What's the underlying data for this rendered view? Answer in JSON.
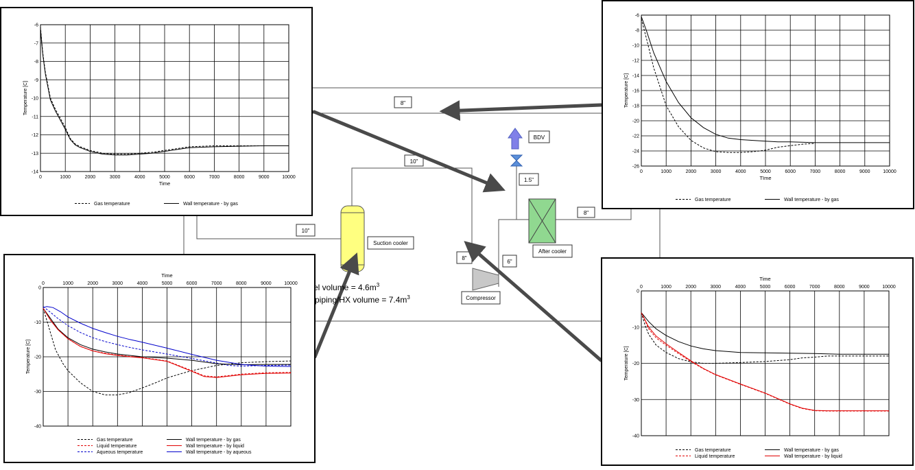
{
  "diagram": {
    "pipe_labels": {
      "top_8": "8\"",
      "top_10": "10\"",
      "left_10": "10\"",
      "bdv_15": "1.5\"",
      "right_8": "8\"",
      "mid_8": "8\"",
      "comp_6": "6\""
    },
    "equipment": {
      "bdv": "BDV",
      "suction_cooler": "Suction cooler",
      "after_cooler": "After cooler",
      "compressor": "Compressor"
    },
    "notes": {
      "vessel_prefix": "el volume = 4.6m",
      "vessel_exp": "3",
      "piping_prefix": "l piping/HX volume = 7.4m",
      "piping_exp": "3"
    },
    "colors": {
      "arrow": "#4a4a4a",
      "bdv_arrow": "#8080e8",
      "suction_cooler": "#ffff80",
      "after_cooler": "#90d890",
      "compressor": "#c8c8c8",
      "valve": "#5b8fd9"
    }
  },
  "chart_data": [
    {
      "type": "line",
      "id": "top-left",
      "xlabel": "Time",
      "ylabel": "Temperature [C]",
      "xlim": [
        0,
        10000
      ],
      "ylim": [
        -14,
        -6
      ],
      "x_axis_position": "bottom",
      "xticks": [
        0,
        1000,
        2000,
        3000,
        4000,
        5000,
        6000,
        7000,
        8000,
        9000,
        10000
      ],
      "yticks": [
        -14,
        -13,
        -12,
        -11,
        -10,
        -9,
        -8,
        -7,
        -6
      ],
      "grid": true,
      "legend_columns": 2,
      "series": [
        {
          "name": "Gas temperature",
          "color": "#000000",
          "dash": true,
          "x": [
            0,
            50,
            100,
            200,
            400,
            600,
            800,
            1000,
            1200,
            1400,
            1600,
            2000,
            2500,
            3000,
            3500,
            4000,
            4500,
            5000,
            5500,
            6000,
            7000,
            8000,
            9000,
            10000
          ],
          "y": [
            -6.1,
            -6.9,
            -7.6,
            -8.6,
            -10.0,
            -10.6,
            -11.1,
            -11.6,
            -12.2,
            -12.5,
            -12.65,
            -12.85,
            -13.0,
            -13.05,
            -13.05,
            -13.0,
            -12.95,
            -12.85,
            -12.75,
            -12.65,
            -12.6,
            -12.6,
            -12.6,
            -12.6
          ]
        },
        {
          "name": "Wall temperature - by gas",
          "color": "#000000",
          "dash": false,
          "x": [
            0,
            50,
            100,
            200,
            400,
            600,
            800,
            1000,
            1200,
            1400,
            1600,
            2000,
            2500,
            3000,
            3500,
            4000,
            4500,
            5000,
            5500,
            6000,
            7000,
            8000,
            9000,
            10000
          ],
          "y": [
            -6.2,
            -7.0,
            -7.7,
            -8.7,
            -10.1,
            -10.7,
            -11.2,
            -11.7,
            -12.25,
            -12.55,
            -12.7,
            -12.9,
            -13.05,
            -13.1,
            -13.1,
            -13.05,
            -13.0,
            -12.9,
            -12.8,
            -12.7,
            -12.65,
            -12.62,
            -12.6,
            -12.6
          ]
        }
      ]
    },
    {
      "type": "line",
      "id": "top-right",
      "xlabel": "TIme",
      "ylabel": "Temperature [C]",
      "xlim": [
        0,
        10000
      ],
      "ylim": [
        -26,
        -6
      ],
      "x_axis_position": "bottom",
      "xticks": [
        0,
        1000,
        2000,
        3000,
        4000,
        5000,
        6000,
        7000,
        8000,
        9000,
        10000
      ],
      "yticks": [
        -26,
        -24,
        -22,
        -20,
        -18,
        -16,
        -14,
        -12,
        -10,
        -8,
        -6
      ],
      "grid": true,
      "legend_columns": 2,
      "series": [
        {
          "name": "Gas temperature",
          "color": "#000000",
          "dash": true,
          "x": [
            0,
            200,
            500,
            1000,
            1500,
            2000,
            2500,
            3000,
            3500,
            4000,
            4500,
            5000,
            5500,
            6000,
            6500,
            7000
          ],
          "y": [
            -6.5,
            -9.0,
            -13.0,
            -18.0,
            -20.8,
            -22.6,
            -23.6,
            -24.1,
            -24.2,
            -24.2,
            -24.1,
            -23.9,
            -23.5,
            -23.3,
            -23.1,
            -23.0
          ]
        },
        {
          "name": "Wall temperature - by gas",
          "color": "#000000",
          "dash": false,
          "x": [
            0,
            200,
            500,
            1000,
            1500,
            2000,
            2500,
            3000,
            3500,
            4000,
            4500,
            5000,
            5500,
            6000,
            7000,
            8000,
            9000,
            10000
          ],
          "y": [
            -6.2,
            -8.0,
            -11.0,
            -14.8,
            -17.6,
            -19.6,
            -20.9,
            -21.8,
            -22.3,
            -22.5,
            -22.6,
            -22.7,
            -22.8,
            -22.8,
            -22.9,
            -22.9,
            -22.9,
            -22.9
          ]
        }
      ]
    },
    {
      "type": "line",
      "id": "bottom-left",
      "xlabel": "Time",
      "ylabel": "Temperature [C]",
      "xlim": [
        0,
        10000
      ],
      "ylim": [
        -40,
        0
      ],
      "x_axis_position": "top",
      "xticks": [
        0,
        1000,
        2000,
        3000,
        4000,
        5000,
        6000,
        7000,
        8000,
        9000,
        10000
      ],
      "yticks": [
        -40,
        -30,
        -20,
        -10,
        0
      ],
      "grid": true,
      "legend_columns": 2,
      "series": [
        {
          "name": "Gas temperature",
          "color": "#000000",
          "dash": true,
          "x": [
            0,
            250,
            500,
            800,
            1000,
            1500,
            2000,
            2500,
            3000,
            3500,
            4000,
            4500,
            5000,
            5500,
            6000,
            7000,
            8000,
            9000,
            10000
          ],
          "y": [
            -6,
            -12,
            -18,
            -22,
            -24,
            -27.5,
            -30,
            -31,
            -31.0,
            -30.3,
            -29,
            -27.6,
            -26.1,
            -25.0,
            -24.0,
            -22.5,
            -21.7,
            -21.4,
            -21.2
          ]
        },
        {
          "name": "Liquid temperature",
          "color": "#e00000",
          "dash": true,
          "x": [
            0,
            300,
            600,
            1000,
            1500,
            2000,
            2500,
            3000,
            3500,
            4000,
            5000,
            6000,
            6500,
            7000,
            8000,
            9000,
            10000
          ],
          "y": [
            -6,
            -9.5,
            -12.2,
            -14.8,
            -17.0,
            -18.3,
            -19.0,
            -19.5,
            -19.9,
            -20.2,
            -21.2,
            -24.0,
            -25.5,
            -25.8,
            -25.0,
            -24.6,
            -24.5
          ]
        },
        {
          "name": "Aqueous temperature",
          "color": "#0000cc",
          "dash": true,
          "x": [
            0,
            300,
            600,
            1000,
            1500,
            2000,
            2500,
            3000,
            3500,
            4000,
            5000,
            6000,
            7000,
            7500,
            8000,
            9000,
            10000
          ],
          "y": [
            -5.5,
            -7.2,
            -9.0,
            -11.0,
            -13.0,
            -14.5,
            -15.6,
            -16.5,
            -17.3,
            -18.0,
            -19.2,
            -20.5,
            -21.8,
            -22.5,
            -22.7,
            -22.5,
            -22.4
          ]
        },
        {
          "name": "Wall temperature - by gas",
          "color": "#000000",
          "dash": false,
          "x": [
            0,
            300,
            600,
            1000,
            1500,
            2000,
            2500,
            3000,
            3500,
            4000,
            5000,
            6000,
            7000,
            8000,
            9000,
            10000
          ],
          "y": [
            -6,
            -9.0,
            -12.0,
            -14.5,
            -16.5,
            -17.8,
            -18.6,
            -19.2,
            -19.6,
            -20.0,
            -20.4,
            -21.0,
            -22.0,
            -22.3,
            -22.2,
            -22.2
          ]
        },
        {
          "name": "Wall temperature - by liquid",
          "color": "#e00000",
          "dash": false,
          "x": [
            0,
            300,
            600,
            1000,
            1500,
            2000,
            2500,
            3000,
            3500,
            4000,
            5000,
            6000,
            6500,
            7000,
            8000,
            9000,
            10000
          ],
          "y": [
            -6,
            -9.5,
            -12.2,
            -14.8,
            -17.0,
            -18.3,
            -19.1,
            -19.6,
            -20.0,
            -20.3,
            -21.3,
            -24.2,
            -25.7,
            -26.0,
            -25.2,
            -24.8,
            -24.7
          ]
        },
        {
          "name": "Wall temperature - by aqueous",
          "color": "#0000cc",
          "dash": false,
          "x": [
            0,
            150,
            400,
            700,
            1000,
            1500,
            2000,
            2500,
            3000,
            3500,
            4000,
            5000,
            6000,
            7000,
            8000,
            9000,
            10000
          ],
          "y": [
            -5.8,
            -5.5,
            -5.8,
            -7.0,
            -8.5,
            -10.3,
            -11.8,
            -13.0,
            -14.1,
            -15.0,
            -15.8,
            -17.5,
            -19.3,
            -21.0,
            -22.2,
            -22.7,
            -22.8
          ]
        }
      ]
    },
    {
      "type": "line",
      "id": "bottom-right",
      "xlabel": "Time",
      "ylabel": "Temperature [C]",
      "xlim": [
        0,
        10000
      ],
      "ylim": [
        -40,
        0
      ],
      "x_axis_position": "top",
      "xticks": [
        0,
        1000,
        2000,
        3000,
        4000,
        5000,
        6000,
        7000,
        8000,
        9000,
        10000
      ],
      "yticks": [
        -40,
        -30,
        -20,
        -10,
        0
      ],
      "grid": true,
      "legend_columns": 2,
      "series": [
        {
          "name": "Gas temperature",
          "color": "#000000",
          "dash": true,
          "x": [
            0,
            150,
            300,
            600,
            1000,
            1500,
            2000,
            2500,
            3000,
            4000,
            5000,
            6000,
            6500,
            7000,
            7500,
            8000,
            9000,
            10000
          ],
          "y": [
            -6,
            -9.5,
            -12.0,
            -15.0,
            -17.0,
            -18.7,
            -19.6,
            -20.0,
            -20.0,
            -19.8,
            -19.5,
            -19.0,
            -18.5,
            -18.3,
            -18.0,
            -18.0,
            -18.0,
            -18.0
          ]
        },
        {
          "name": "Liquid temperature",
          "color": "#e00000",
          "dash": true,
          "x": [
            0,
            300,
            600,
            1000,
            1500,
            2000,
            2500,
            3000,
            4000,
            5000,
            5500,
            6000,
            6500,
            7000,
            7500,
            8000,
            9000,
            10000
          ],
          "y": [
            -6,
            -10.5,
            -13.0,
            -15.0,
            -17.3,
            -19.5,
            -21.5,
            -23.2,
            -25.8,
            -28.3,
            -29.8,
            -31.3,
            -32.5,
            -33.1,
            -33.2,
            -33.2,
            -33.2,
            -33.2
          ]
        },
        {
          "name": "Wall temperature - by gas",
          "color": "#000000",
          "dash": false,
          "x": [
            0,
            300,
            600,
            1000,
            1500,
            2000,
            2500,
            3000,
            4000,
            5000,
            6000,
            7000,
            8000,
            9000,
            10000
          ],
          "y": [
            -6,
            -8.5,
            -10.5,
            -12.3,
            -14.0,
            -15.2,
            -16.0,
            -16.5,
            -17.0,
            -17.1,
            -17.2,
            -17.3,
            -17.5,
            -17.5,
            -17.5
          ]
        },
        {
          "name": "Wall temperature - by liquid",
          "color": "#e00000",
          "dash": false,
          "x": [
            0,
            300,
            600,
            1000,
            1500,
            2000,
            2500,
            3000,
            4000,
            5000,
            5500,
            6000,
            6500,
            7000,
            7500,
            8000,
            9000,
            10000
          ],
          "y": [
            -6,
            -10.0,
            -12.5,
            -14.6,
            -17.0,
            -19.3,
            -21.4,
            -23.1,
            -25.7,
            -28.2,
            -29.7,
            -31.2,
            -32.4,
            -33.0,
            -33.1,
            -33.1,
            -33.1,
            -33.1
          ]
        }
      ]
    }
  ]
}
